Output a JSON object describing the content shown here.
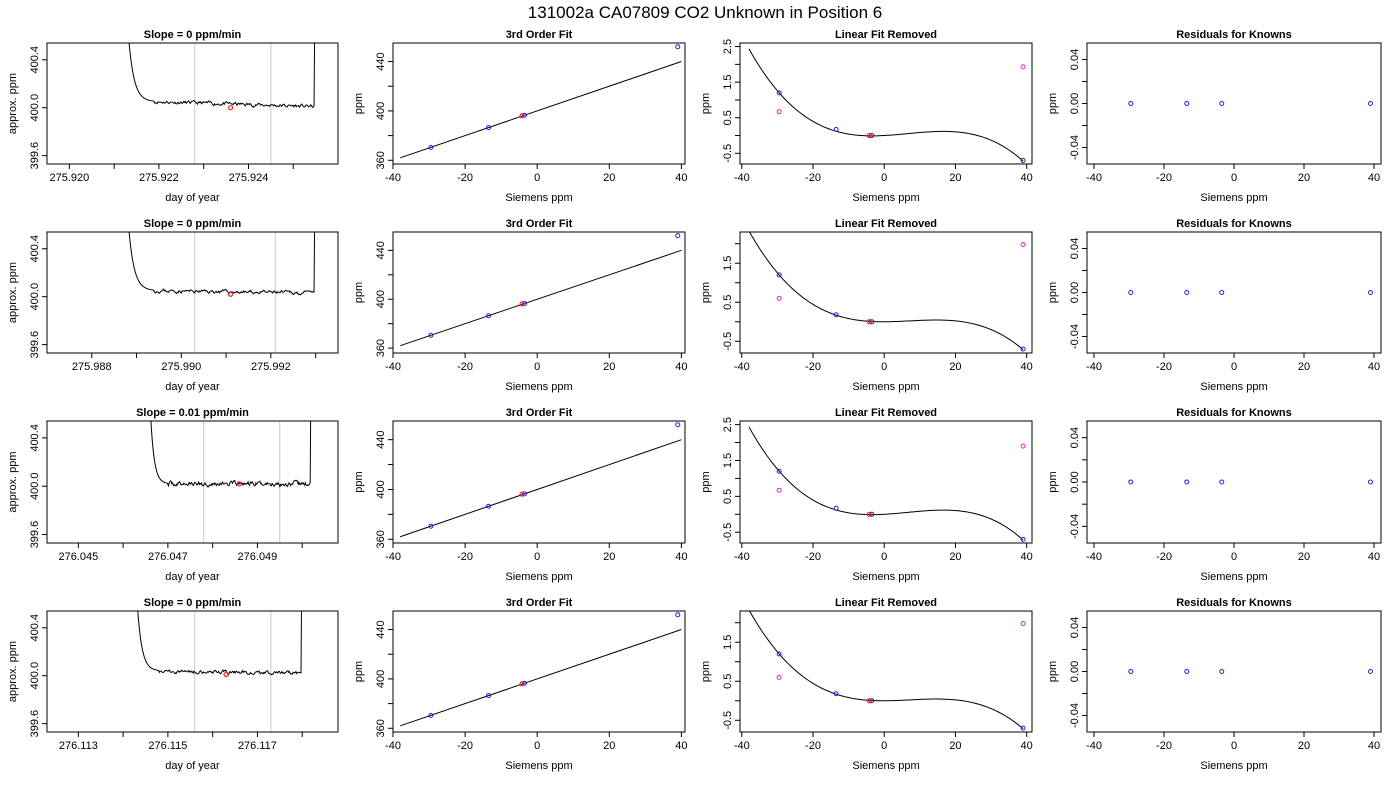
{
  "title": "131002a     CA07809    CO2 Unknown in Position  6",
  "colors": {
    "known_point": "#2222dd",
    "unknown_point": "#ee2222",
    "linear_point": "#dd22dd",
    "grey_line": "#c8c8c8",
    "curve": "#000000"
  },
  "chart_data": [
    {
      "row": 1,
      "panels": [
        {
          "type": "line",
          "title": "Slope =  0  ppm/min",
          "xlabel": "day of year",
          "ylabel": "approx. ppm",
          "xlim": [
            275.9195,
            275.926
          ],
          "ylim": [
            399.53,
            400.54
          ],
          "xticks": [
            275.92,
            275.922,
            275.924
          ],
          "xticklabels": [
            "275.920",
            "275.922",
            "275.924"
          ],
          "xminor": [
            275.921,
            275.923,
            275.925
          ],
          "yticks": [
            399.6,
            400.0,
            400.4
          ],
          "yticklabels": [
            "399.6",
            "400.0",
            "400.4"
          ],
          "vlines": [
            275.9228,
            275.9245
          ],
          "unknown_point": [
            275.9236,
            400.0
          ],
          "trace": {
            "start": 275.921,
            "rise_end": 275.9213,
            "plateau_start": 275.9219,
            "plateau_end": 275.92548,
            "rise_start": 275.9255,
            "top": 400.7,
            "level_start": 400.05,
            "level_end": 400.01,
            "noise": 0.012,
            "seed": 11
          }
        },
        {
          "type": "scatter",
          "title": "3rd Order Fit",
          "xlabel": "Siemens ppm",
          "ylabel": "ppm",
          "xlim": [
            -40,
            41
          ],
          "ylim": [
            357,
            455
          ],
          "xticks": [
            -40,
            -20,
            0,
            20,
            40
          ],
          "yticks": [
            360,
            400,
            440
          ],
          "yminor": [
            380,
            420
          ],
          "known_x": [
            -29.5,
            -13.5,
            -3.5,
            39
          ],
          "known_y": [
            370.5,
            386.5,
            396.5,
            452
          ],
          "unknown_point": [
            -4.2,
            396.2
          ],
          "line": {
            "x0": -38,
            "x1": 40,
            "intercept": 400.0,
            "slope": 1.0
          }
        },
        {
          "type": "scatter",
          "title": "Linear Fit Removed",
          "xlabel": "Siemens ppm",
          "ylabel": "ppm",
          "xlim": [
            -40.5,
            41.5
          ],
          "ylim": [
            -0.8,
            2.6
          ],
          "xticks": [
            -40,
            -20,
            0,
            20,
            40
          ],
          "yticks": [
            -0.5,
            0.5,
            1.5,
            2.5
          ],
          "yminor": [
            0,
            1,
            2
          ],
          "known_x": [
            -29.5,
            -13.5,
            -3.5,
            39
          ],
          "known_y": [
            1.2,
            0.17,
            0.0,
            -0.7
          ],
          "linear_x": [
            -29.5,
            -3.5,
            39
          ],
          "linear_y": [
            0.67,
            0.0,
            1.93
          ],
          "unknown_point": [
            -4.2,
            0.0
          ],
          "curve": {
            "x0": -38,
            "x1": 39,
            "xm": -37.5,
            "yt": 2.35,
            "y1": 1.2,
            "xa": 0,
            "ya": 0.0,
            "xb": 38.8,
            "yb": -0.7
          }
        },
        {
          "type": "scatter",
          "title": "Residuals for Knowns",
          "xlabel": "Siemens ppm",
          "ylabel": "ppm",
          "xlim": [
            -42,
            42
          ],
          "ylim": [
            -0.055,
            0.055
          ],
          "xticks": [
            -40,
            -20,
            0,
            20,
            40
          ],
          "yticks": [
            -0.04,
            0.0,
            0.04
          ],
          "yticklabels": [
            "-0.04",
            "0.00",
            "0.04"
          ],
          "yminor": [
            -0.02,
            0.02
          ],
          "known_x": [
            -29.5,
            -13.5,
            -3.5,
            39
          ],
          "known_y": [
            0.0,
            0.0,
            0.0,
            0.0
          ]
        }
      ]
    },
    {
      "row": 2,
      "panels": [
        {
          "type": "line",
          "title": "Slope =  0  ppm/min",
          "xlabel": "day of year",
          "ylabel": "approx. ppm",
          "xlim": [
            275.987,
            275.9935
          ],
          "ylim": [
            399.53,
            400.54
          ],
          "xticks": [
            275.988,
            275.99,
            275.992
          ],
          "xticklabels": [
            "275.988",
            "275.990",
            "275.992"
          ],
          "xminor": [
            275.989,
            275.991,
            275.993
          ],
          "vlines": [
            275.9903,
            275.9921
          ],
          "yticks": [
            399.6,
            400.0,
            400.4
          ],
          "yticklabels": [
            "399.6",
            "400.0",
            "400.4"
          ],
          "unknown_point": [
            275.9911,
            400.02
          ],
          "trace": {
            "start": 275.9885,
            "rise_end": 275.9888,
            "plateau_start": 275.9894,
            "plateau_end": 275.99298,
            "rise_start": 275.993,
            "top": 400.7,
            "level_start": 400.05,
            "level_end": 400.03,
            "noise": 0.012,
            "seed": 23
          }
        },
        {
          "type": "scatter",
          "title": "3rd Order Fit",
          "xlabel": "Siemens ppm",
          "ylabel": "ppm",
          "xlim": [
            -40,
            41
          ],
          "ylim": [
            356,
            455
          ],
          "xticks": [
            -40,
            -20,
            0,
            20,
            40
          ],
          "yticks": [
            360,
            400,
            440
          ],
          "yminor": [
            380,
            420
          ],
          "known_x": [
            -29.5,
            -13.5,
            -3.5,
            39
          ],
          "known_y": [
            370.5,
            386.5,
            396.5,
            452
          ],
          "unknown_point": [
            -4.2,
            396.2
          ],
          "line": {
            "x0": -38,
            "x1": 40,
            "intercept": 400.0,
            "slope": 1.0
          }
        },
        {
          "type": "scatter",
          "title": "Linear Fit Removed",
          "xlabel": "Siemens ppm",
          "ylabel": "ppm",
          "xlim": [
            -40.5,
            41.5
          ],
          "ylim": [
            -0.8,
            2.3
          ],
          "xticks": [
            -40,
            -20,
            0,
            20,
            40
          ],
          "yticks": [
            -0.5,
            0.5,
            1.5
          ],
          "yminor": [
            0,
            1,
            2
          ],
          "known_x": [
            -29.5,
            -13.5,
            -3.5,
            39
          ],
          "known_y": [
            1.2,
            0.18,
            0.0,
            -0.7
          ],
          "linear_x": [
            -29.5,
            -3.5,
            39
          ],
          "linear_y": [
            0.6,
            0.0,
            1.98
          ],
          "unknown_point": [
            -4.2,
            0.0
          ],
          "curve": {
            "x0": -38,
            "x1": 39,
            "xm": -37.5,
            "yt": 2.25,
            "y1": 1.2,
            "xa": 0,
            "ya": 0.0,
            "xb": 38.8,
            "yb": -0.7
          }
        },
        {
          "type": "scatter",
          "title": "Residuals for Knowns",
          "xlabel": "Siemens ppm",
          "ylabel": "ppm",
          "xlim": [
            -42,
            42
          ],
          "ylim": [
            -0.055,
            0.055
          ],
          "xticks": [
            -40,
            -20,
            0,
            20,
            40
          ],
          "yticks": [
            -0.04,
            0.0,
            0.04
          ],
          "yticklabels": [
            "-0.04",
            "0.00",
            "0.04"
          ],
          "yminor": [
            -0.02,
            0.02
          ],
          "known_x": [
            -29.5,
            -13.5,
            -3.5,
            39
          ],
          "known_y": [
            0.0,
            0.0,
            0.0,
            0.0
          ]
        }
      ]
    },
    {
      "row": 3,
      "panels": [
        {
          "type": "line",
          "title": "Slope =  0.01  ppm/min",
          "xlabel": "day of year",
          "ylabel": "approx. ppm",
          "xlim": [
            276.0443,
            276.0508
          ],
          "ylim": [
            399.53,
            400.54
          ],
          "xticks": [
            276.045,
            276.047,
            276.049
          ],
          "xticklabels": [
            "276.045",
            "276.047",
            "276.049"
          ],
          "xminor": [
            276.046,
            276.048,
            276.05
          ],
          "vlines": [
            276.0478,
            276.0495
          ],
          "yticks": [
            399.6,
            400.0,
            400.4
          ],
          "yticklabels": [
            "399.6",
            "400.0",
            "400.4"
          ],
          "unknown_point": [
            276.0486,
            400.02
          ],
          "trace": {
            "start": 276.0463,
            "rise_end": 276.0466,
            "plateau_start": 276.047,
            "plateau_end": 276.05018,
            "rise_start": 276.0502,
            "top": 400.7,
            "level_start": 400.02,
            "level_end": 400.02,
            "noise": 0.016,
            "seed": 37
          }
        },
        {
          "type": "scatter",
          "title": "3rd Order Fit",
          "xlabel": "Siemens ppm",
          "ylabel": "ppm",
          "xlim": [
            -40,
            41
          ],
          "ylim": [
            357,
            455
          ],
          "xticks": [
            -40,
            -20,
            0,
            20,
            40
          ],
          "yticks": [
            360,
            400,
            440
          ],
          "yminor": [
            380,
            420
          ],
          "known_x": [
            -29.5,
            -13.5,
            -3.5,
            39
          ],
          "known_y": [
            370.5,
            386.5,
            396.5,
            452
          ],
          "unknown_point": [
            -4.2,
            396.2
          ],
          "line": {
            "x0": -38,
            "x1": 40,
            "intercept": 400.0,
            "slope": 1.0
          }
        },
        {
          "type": "scatter",
          "title": "Linear Fit Removed",
          "xlabel": "Siemens ppm",
          "ylabel": "ppm",
          "xlim": [
            -40.5,
            41.5
          ],
          "ylim": [
            -0.8,
            2.6
          ],
          "xticks": [
            -40,
            -20,
            0,
            20,
            40
          ],
          "yticks": [
            -0.5,
            0.5,
            1.5,
            2.5
          ],
          "yminor": [
            0,
            1,
            2
          ],
          "known_x": [
            -29.5,
            -13.5,
            -3.5,
            39
          ],
          "known_y": [
            1.2,
            0.17,
            0.0,
            -0.7
          ],
          "linear_x": [
            -29.5,
            -3.5,
            39
          ],
          "linear_y": [
            0.67,
            0.0,
            1.9
          ],
          "unknown_point": [
            -4.2,
            0.0
          ],
          "curve": {
            "x0": -38,
            "x1": 39,
            "xm": -37.5,
            "yt": 2.35,
            "y1": 1.2,
            "xa": 0,
            "ya": 0.0,
            "xb": 38.8,
            "yb": -0.7
          }
        },
        {
          "type": "scatter",
          "title": "Residuals for Knowns",
          "xlabel": "Siemens ppm",
          "ylabel": "ppm",
          "xlim": [
            -42,
            42
          ],
          "ylim": [
            -0.055,
            0.055
          ],
          "xticks": [
            -40,
            -20,
            0,
            20,
            40
          ],
          "yticks": [
            -0.04,
            0.0,
            0.04
          ],
          "yticklabels": [
            "-0.04",
            "0.00",
            "0.04"
          ],
          "yminor": [
            -0.02,
            0.02
          ],
          "known_x": [
            -29.5,
            -13.5,
            -3.5,
            39
          ],
          "known_y": [
            0.0,
            0.0,
            0.0,
            0.0
          ]
        }
      ]
    },
    {
      "row": 4,
      "panels": [
        {
          "type": "line",
          "title": "Slope =  0  ppm/min",
          "xlabel": "day of year",
          "ylabel": "approx. ppm",
          "xlim": [
            276.1123,
            276.1188
          ],
          "ylim": [
            399.53,
            400.54
          ],
          "xticks": [
            276.113,
            276.115,
            276.117
          ],
          "xticklabels": [
            "276.113",
            "276.115",
            "276.117"
          ],
          "xminor": [
            276.114,
            276.116,
            276.118
          ],
          "vlines": [
            276.1156,
            276.1173
          ],
          "yticks": [
            399.6,
            400.0,
            400.4
          ],
          "yticklabels": [
            "399.6",
            "400.0",
            "400.4"
          ],
          "unknown_point": [
            276.1163,
            400.01
          ],
          "trace": {
            "start": 276.114,
            "rise_end": 276.1143,
            "plateau_start": 276.1148,
            "plateau_end": 276.11798,
            "rise_start": 276.118,
            "top": 400.7,
            "level_start": 400.04,
            "level_end": 400.02,
            "noise": 0.012,
            "seed": 51
          }
        },
        {
          "type": "scatter",
          "title": "3rd Order Fit",
          "xlabel": "Siemens ppm",
          "ylabel": "ppm",
          "xlim": [
            -40,
            41
          ],
          "ylim": [
            357,
            455
          ],
          "xticks": [
            -40,
            -20,
            0,
            20,
            40
          ],
          "yticks": [
            360,
            400,
            440
          ],
          "yminor": [
            380,
            420
          ],
          "known_x": [
            -29.5,
            -13.5,
            -3.5,
            39
          ],
          "known_y": [
            370.5,
            386.5,
            396.5,
            452
          ],
          "unknown_point": [
            -4.2,
            396.2
          ],
          "line": {
            "x0": -38,
            "x1": 40,
            "intercept": 400.0,
            "slope": 1.0
          }
        },
        {
          "type": "scatter",
          "title": "Linear Fit Removed",
          "xlabel": "Siemens ppm",
          "ylabel": "ppm",
          "xlim": [
            -40.5,
            41.5
          ],
          "ylim": [
            -0.8,
            2.3
          ],
          "xticks": [
            -40,
            -20,
            0,
            20,
            40
          ],
          "yticks": [
            -0.5,
            0.5,
            1.5
          ],
          "yminor": [
            0,
            1,
            2
          ],
          "known_x": [
            -29.5,
            -13.5,
            -3.5,
            39
          ],
          "known_y": [
            1.2,
            0.18,
            0.0,
            -0.7
          ],
          "linear_x": [
            -29.5,
            -3.5,
            39
          ],
          "linear_y": [
            0.6,
            0.0,
            1.98
          ],
          "unknown_point": [
            -4.2,
            0.0
          ],
          "curve": {
            "x0": -38,
            "x1": 39,
            "xm": -37.5,
            "yt": 2.25,
            "y1": 1.2,
            "xa": 0,
            "ya": 0.0,
            "xb": 38.8,
            "yb": -0.7
          }
        },
        {
          "type": "scatter",
          "title": "Residuals for Knowns",
          "xlabel": "Siemens ppm",
          "ylabel": "ppm",
          "xlim": [
            -42,
            42
          ],
          "ylim": [
            -0.055,
            0.055
          ],
          "xticks": [
            -40,
            -20,
            0,
            20,
            40
          ],
          "yticks": [
            -0.04,
            0.0,
            0.04
          ],
          "yticklabels": [
            "-0.04",
            "0.00",
            "0.04"
          ],
          "yminor": [
            -0.02,
            0.02
          ],
          "known_x": [
            -29.5,
            -13.5,
            -3.5,
            39
          ],
          "known_y": [
            0.0,
            0.0,
            0.0,
            0.0
          ]
        }
      ]
    }
  ]
}
